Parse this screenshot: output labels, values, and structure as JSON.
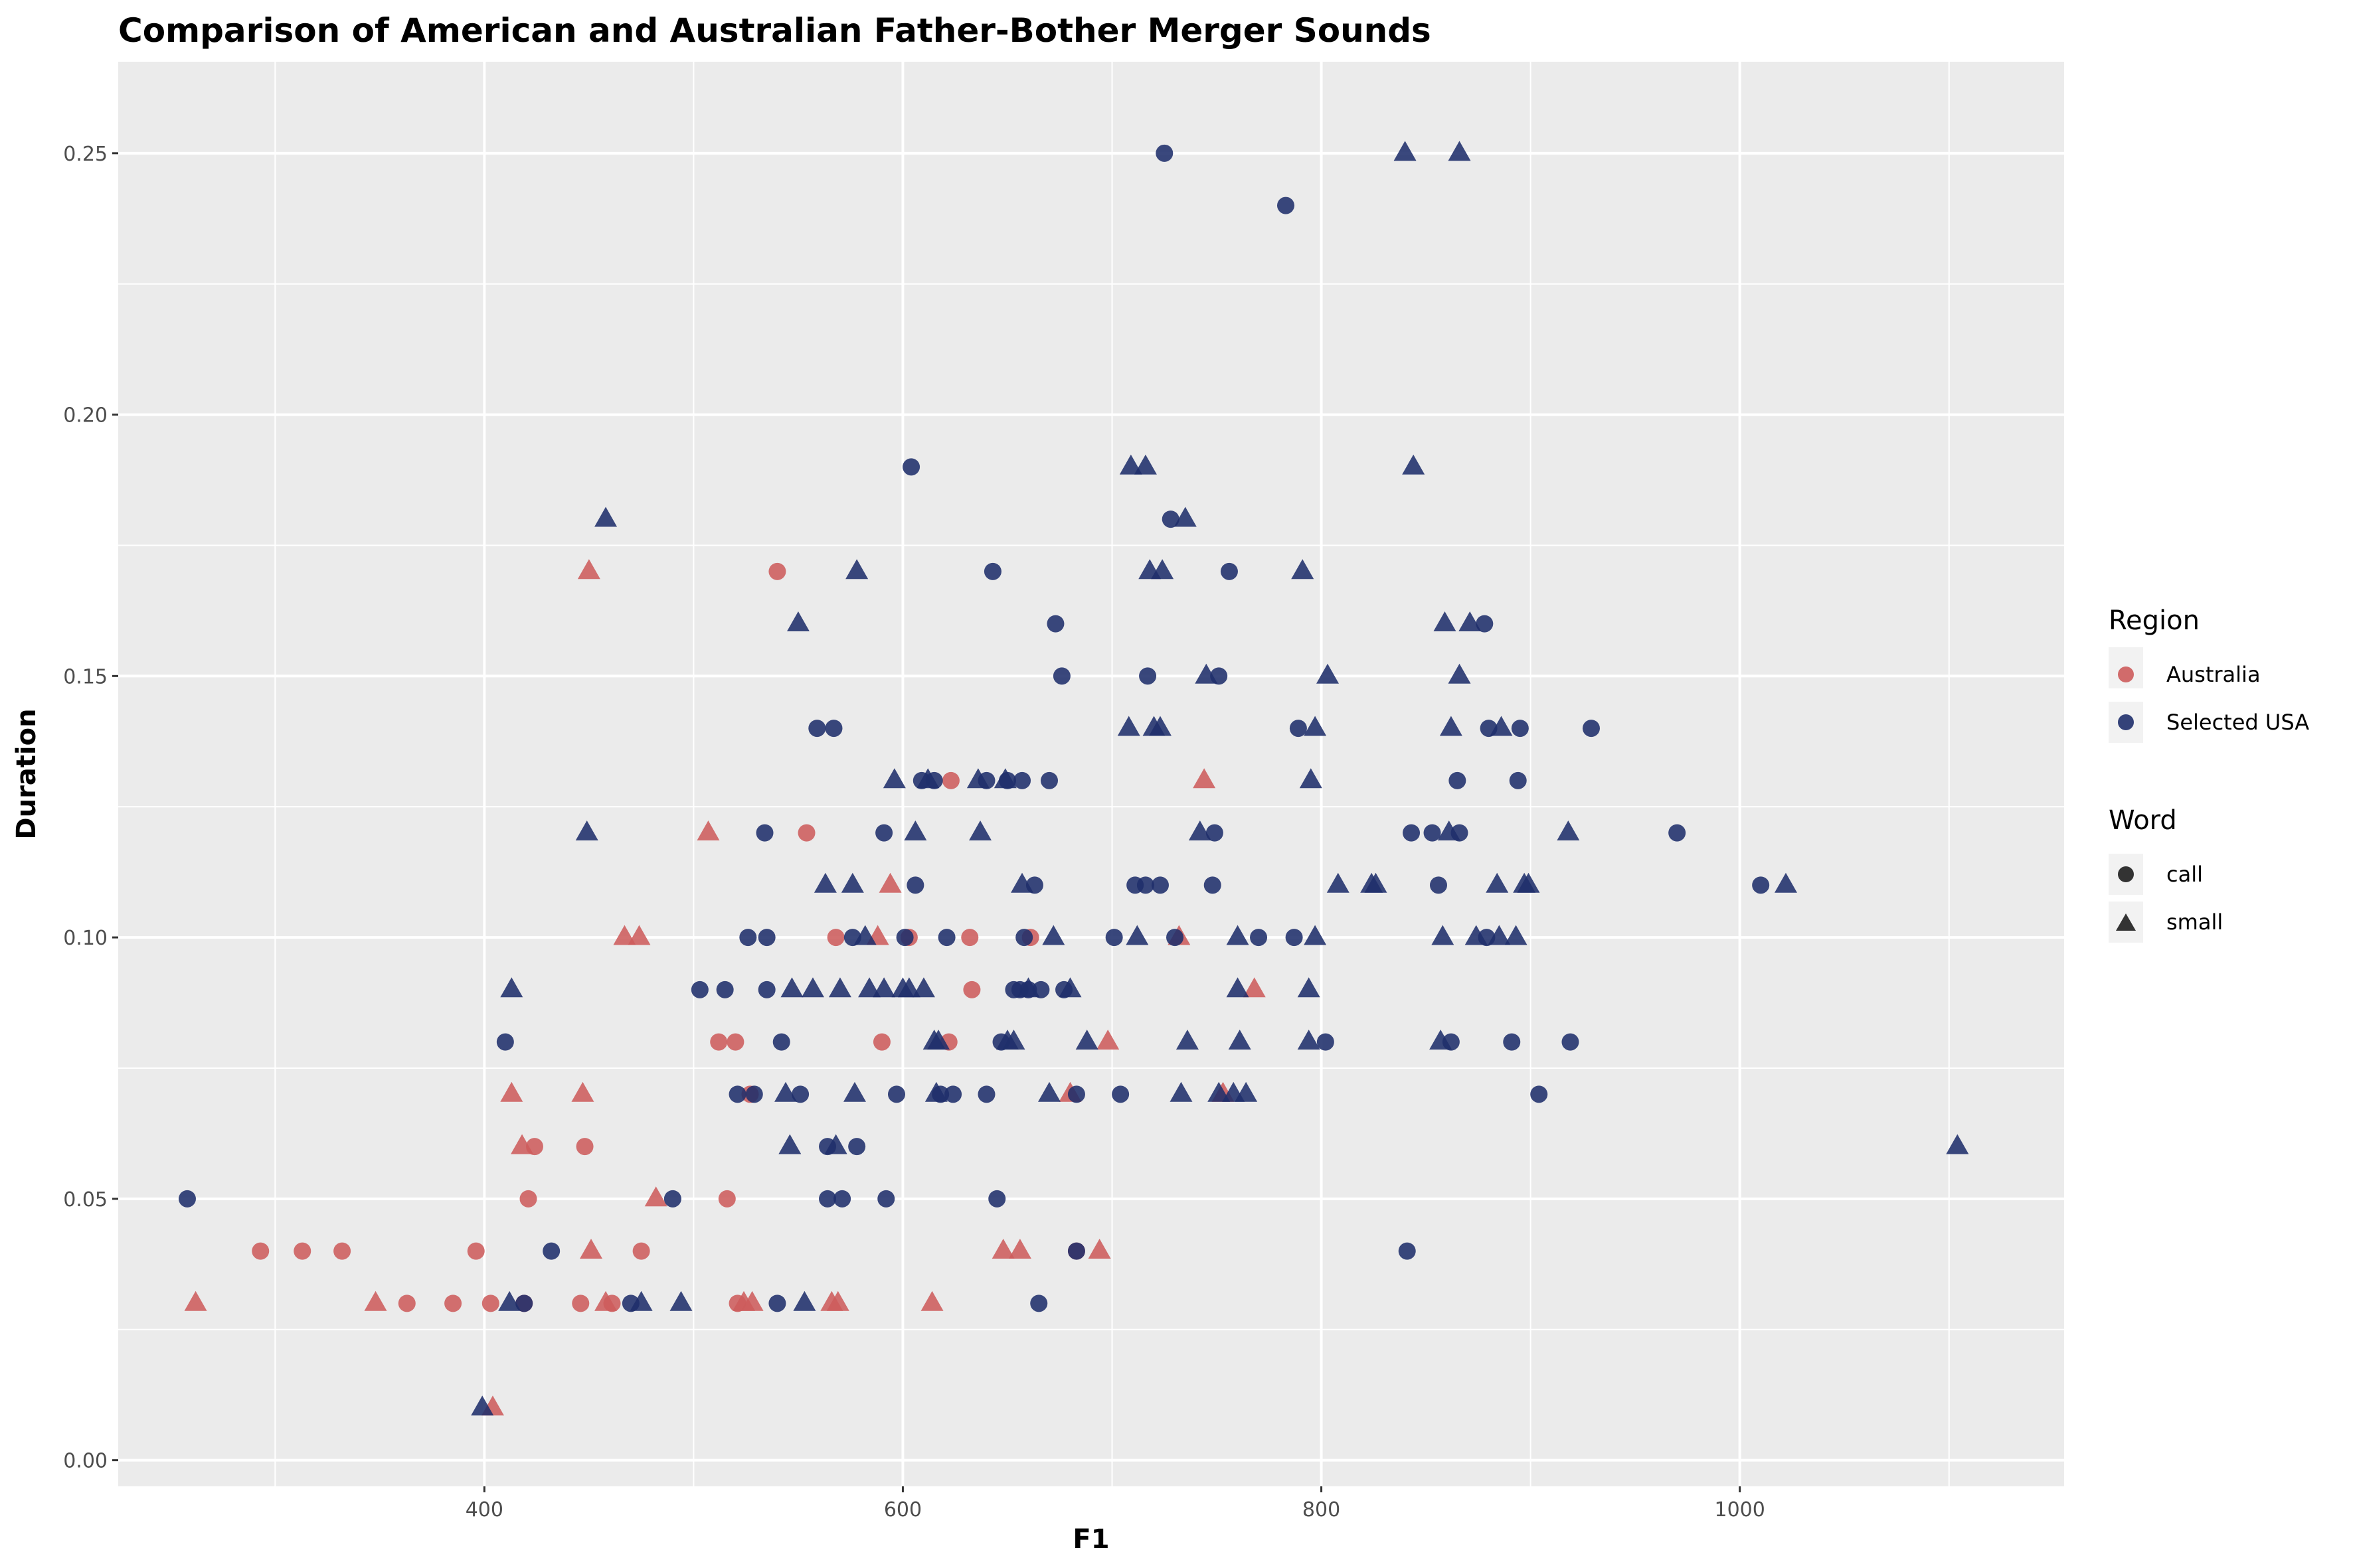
{
  "chart_data": {
    "type": "scatter",
    "title": "Comparison of American and Australian Father-Bother Merger Sounds",
    "xlabel": "F1",
    "ylabel": "Duration",
    "xlim": [
      225,
      1155
    ],
    "ylim": [
      -0.005,
      0.2675
    ],
    "x_ticks": [
      400,
      600,
      800,
      1000
    ],
    "x_tick_labels": [
      "400",
      "600",
      "800",
      "1000"
    ],
    "y_ticks": [
      0.0,
      0.05,
      0.1,
      0.15,
      0.2,
      0.25
    ],
    "y_tick_labels": [
      "0.00",
      "0.05",
      "0.10",
      "0.15",
      "0.20",
      "0.25"
    ],
    "grid": true,
    "legend": {
      "position": "right",
      "groups": [
        {
          "title": "Region",
          "entries": [
            {
              "label": "Australia",
              "color": "#cd5c5c",
              "shape": "circle"
            },
            {
              "label": "Selected USA",
              "color": "#1f2f6b",
              "shape": "circle"
            }
          ]
        },
        {
          "title": "Word",
          "entries": [
            {
              "label": "call",
              "color": "#333333",
              "shape": "circle"
            },
            {
              "label": "small",
              "color": "#333333",
              "shape": "triangle"
            }
          ]
        }
      ]
    },
    "colors": {
      "Australia": "#cd5c5c",
      "Selected USA": "#1f2f6b"
    },
    "series": [
      {
        "region": "Australia",
        "word": "call",
        "points": [
          [
            293,
            0.04
          ],
          [
            313,
            0.04
          ],
          [
            332,
            0.04
          ],
          [
            363,
            0.03
          ],
          [
            385,
            0.03
          ],
          [
            396,
            0.04
          ],
          [
            403,
            0.03
          ],
          [
            419,
            0.03
          ],
          [
            421,
            0.05
          ],
          [
            424,
            0.06
          ],
          [
            446,
            0.03
          ],
          [
            448,
            0.06
          ],
          [
            461,
            0.03
          ],
          [
            475,
            0.04
          ],
          [
            512,
            0.08
          ],
          [
            516,
            0.05
          ],
          [
            520,
            0.08
          ],
          [
            521,
            0.03
          ],
          [
            527,
            0.07
          ],
          [
            540,
            0.17
          ],
          [
            554,
            0.12
          ],
          [
            568,
            0.1
          ],
          [
            590,
            0.08
          ],
          [
            603,
            0.1
          ],
          [
            622,
            0.08
          ],
          [
            623,
            0.13
          ],
          [
            632,
            0.1
          ],
          [
            633,
            0.09
          ],
          [
            661,
            0.1
          ],
          [
            683,
            0.04
          ]
        ]
      },
      {
        "region": "Australia",
        "word": "small",
        "points": [
          [
            262,
            0.03
          ],
          [
            348,
            0.03
          ],
          [
            404,
            0.01
          ],
          [
            413,
            0.07
          ],
          [
            418,
            0.06
          ],
          [
            447,
            0.07
          ],
          [
            450,
            0.17
          ],
          [
            451,
            0.04
          ],
          [
            458,
            0.03
          ],
          [
            467,
            0.1
          ],
          [
            474,
            0.1
          ],
          [
            482,
            0.05
          ],
          [
            507,
            0.12
          ],
          [
            524,
            0.03
          ],
          [
            528,
            0.03
          ],
          [
            566,
            0.03
          ],
          [
            569,
            0.03
          ],
          [
            588,
            0.1
          ],
          [
            594,
            0.11
          ],
          [
            614,
            0.03
          ],
          [
            648,
            0.04
          ],
          [
            656,
            0.04
          ],
          [
            680,
            0.07
          ],
          [
            694,
            0.04
          ],
          [
            698,
            0.08
          ],
          [
            732,
            0.1
          ],
          [
            744,
            0.13
          ],
          [
            753,
            0.07
          ],
          [
            768,
            0.09
          ]
        ]
      },
      {
        "region": "Selected USA",
        "word": "call",
        "points": [
          [
            258,
            0.05
          ],
          [
            410,
            0.08
          ],
          [
            419,
            0.03
          ],
          [
            432,
            0.04
          ],
          [
            470,
            0.03
          ],
          [
            490,
            0.05
          ],
          [
            503,
            0.09
          ],
          [
            515,
            0.09
          ],
          [
            521,
            0.07
          ],
          [
            526,
            0.1
          ],
          [
            529,
            0.07
          ],
          [
            534,
            0.12
          ],
          [
            535,
            0.1
          ],
          [
            535,
            0.09
          ],
          [
            540,
            0.03
          ],
          [
            542,
            0.08
          ],
          [
            551,
            0.07
          ],
          [
            559,
            0.14
          ],
          [
            564,
            0.05
          ],
          [
            564,
            0.06
          ],
          [
            567,
            0.14
          ],
          [
            571,
            0.05
          ],
          [
            576,
            0.1
          ],
          [
            578,
            0.06
          ],
          [
            591,
            0.12
          ],
          [
            592,
            0.05
          ],
          [
            597,
            0.07
          ],
          [
            601,
            0.1
          ],
          [
            604,
            0.19
          ],
          [
            606,
            0.11
          ],
          [
            609,
            0.13
          ],
          [
            615,
            0.13
          ],
          [
            618,
            0.07
          ],
          [
            621,
            0.1
          ],
          [
            624,
            0.07
          ],
          [
            640,
            0.13
          ],
          [
            640,
            0.07
          ],
          [
            643,
            0.17
          ],
          [
            645,
            0.05
          ],
          [
            647,
            0.08
          ],
          [
            650,
            0.13
          ],
          [
            653,
            0.09
          ],
          [
            656,
            0.09
          ],
          [
            657,
            0.13
          ],
          [
            658,
            0.1
          ],
          [
            660,
            0.09
          ],
          [
            663,
            0.11
          ],
          [
            665,
            0.03
          ],
          [
            666,
            0.09
          ],
          [
            670,
            0.13
          ],
          [
            673,
            0.16
          ],
          [
            676,
            0.15
          ],
          [
            677,
            0.09
          ],
          [
            683,
            0.04
          ],
          [
            683,
            0.07
          ],
          [
            701,
            0.1
          ],
          [
            704,
            0.07
          ],
          [
            711,
            0.11
          ],
          [
            716,
            0.11
          ],
          [
            717,
            0.15
          ],
          [
            723,
            0.11
          ],
          [
            725,
            0.25
          ],
          [
            728,
            0.18
          ],
          [
            730,
            0.1
          ],
          [
            748,
            0.11
          ],
          [
            749,
            0.12
          ],
          [
            751,
            0.15
          ],
          [
            756,
            0.17
          ],
          [
            770,
            0.1
          ],
          [
            783,
            0.24
          ],
          [
            787,
            0.1
          ],
          [
            789,
            0.14
          ],
          [
            802,
            0.08
          ],
          [
            841,
            0.04
          ],
          [
            843,
            0.12
          ],
          [
            853,
            0.12
          ],
          [
            856,
            0.11
          ],
          [
            862,
            0.08
          ],
          [
            865,
            0.13
          ],
          [
            866,
            0.12
          ],
          [
            878,
            0.16
          ],
          [
            879,
            0.1
          ],
          [
            880,
            0.14
          ],
          [
            891,
            0.08
          ],
          [
            894,
            0.13
          ],
          [
            895,
            0.14
          ],
          [
            904,
            0.07
          ],
          [
            919,
            0.08
          ],
          [
            929,
            0.14
          ],
          [
            970,
            0.12
          ],
          [
            1010,
            0.11
          ]
        ]
      },
      {
        "region": "Selected USA",
        "word": "small",
        "points": [
          [
            399,
            0.01
          ],
          [
            412,
            0.03
          ],
          [
            413,
            0.09
          ],
          [
            449,
            0.12
          ],
          [
            458,
            0.18
          ],
          [
            475,
            0.03
          ],
          [
            494,
            0.03
          ],
          [
            544,
            0.07
          ],
          [
            546,
            0.06
          ],
          [
            547,
            0.09
          ],
          [
            550,
            0.16
          ],
          [
            553,
            0.03
          ],
          [
            557,
            0.09
          ],
          [
            563,
            0.11
          ],
          [
            568,
            0.06
          ],
          [
            570,
            0.09
          ],
          [
            576,
            0.11
          ],
          [
            577,
            0.07
          ],
          [
            578,
            0.17
          ],
          [
            582,
            0.1
          ],
          [
            584,
            0.09
          ],
          [
            591,
            0.09
          ],
          [
            596,
            0.13
          ],
          [
            600,
            0.09
          ],
          [
            603,
            0.09
          ],
          [
            606,
            0.12
          ],
          [
            610,
            0.09
          ],
          [
            612,
            0.13
          ],
          [
            615,
            0.08
          ],
          [
            616,
            0.07
          ],
          [
            617,
            0.08
          ],
          [
            636,
            0.13
          ],
          [
            637,
            0.12
          ],
          [
            649,
            0.13
          ],
          [
            650,
            0.08
          ],
          [
            653,
            0.08
          ],
          [
            657,
            0.11
          ],
          [
            660,
            0.09
          ],
          [
            670,
            0.07
          ],
          [
            672,
            0.1
          ],
          [
            680,
            0.09
          ],
          [
            688,
            0.08
          ],
          [
            708,
            0.14
          ],
          [
            709,
            0.19
          ],
          [
            712,
            0.1
          ],
          [
            716,
            0.19
          ],
          [
            718,
            0.17
          ],
          [
            720,
            0.14
          ],
          [
            723,
            0.14
          ],
          [
            724,
            0.17
          ],
          [
            733,
            0.07
          ],
          [
            735,
            0.18
          ],
          [
            736,
            0.08
          ],
          [
            742,
            0.12
          ],
          [
            745,
            0.15
          ],
          [
            751,
            0.07
          ],
          [
            758,
            0.07
          ],
          [
            760,
            0.1
          ],
          [
            760,
            0.09
          ],
          [
            761,
            0.08
          ],
          [
            764,
            0.07
          ],
          [
            791,
            0.17
          ],
          [
            794,
            0.09
          ],
          [
            794,
            0.08
          ],
          [
            795,
            0.13
          ],
          [
            797,
            0.1
          ],
          [
            797,
            0.14
          ],
          [
            803,
            0.15
          ],
          [
            808,
            0.11
          ],
          [
            824,
            0.11
          ],
          [
            826,
            0.11
          ],
          [
            840,
            0.25
          ],
          [
            844,
            0.19
          ],
          [
            857,
            0.08
          ],
          [
            858,
            0.1
          ],
          [
            859,
            0.16
          ],
          [
            861,
            0.12
          ],
          [
            862,
            0.14
          ],
          [
            866,
            0.25
          ],
          [
            866,
            0.15
          ],
          [
            871,
            0.16
          ],
          [
            874,
            0.1
          ],
          [
            884,
            0.11
          ],
          [
            885,
            0.1
          ],
          [
            886,
            0.14
          ],
          [
            893,
            0.1
          ],
          [
            897,
            0.11
          ],
          [
            899,
            0.11
          ],
          [
            918,
            0.12
          ],
          [
            1022,
            0.11
          ],
          [
            1104,
            0.06
          ]
        ]
      }
    ]
  }
}
